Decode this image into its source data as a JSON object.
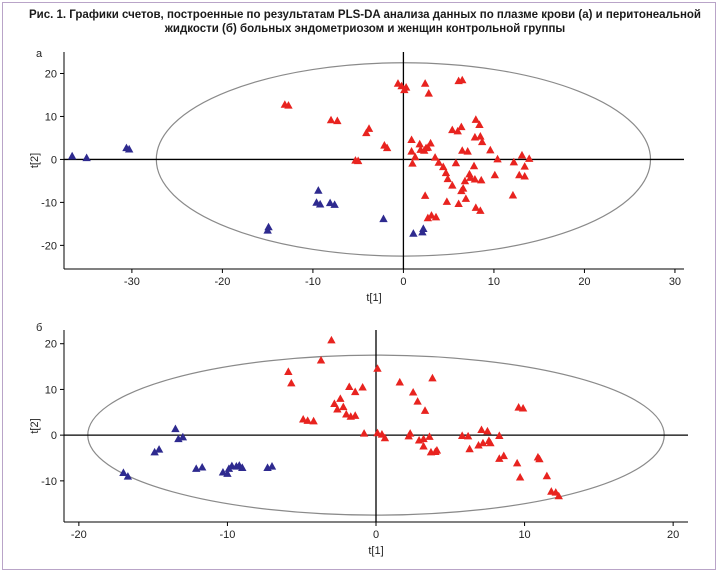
{
  "caption": "Рис. 1. Графики счетов, построенные по результатам PLS-DA анализа данных по плазме крови (а) и перитонеальной жидкости (б) больных эндометриозом и женщин контрольной группы",
  "colors": {
    "group_red": "#e8231f",
    "group_blue": "#2e2a8f",
    "ellipse": "#8a8a8a",
    "axis": "#000000",
    "frame": "#b9a4c8"
  },
  "chart_data": [
    {
      "type": "scatter",
      "panel_label": "а",
      "xlabel": "t[1]",
      "ylabel": "t[2]",
      "xlim": [
        -37.5,
        31
      ],
      "ylim": [
        -25.5,
        25
      ],
      "xticks": [
        -30,
        -20,
        -10,
        0,
        10,
        20,
        30
      ],
      "yticks": [
        -20,
        -10,
        0,
        10,
        20
      ],
      "ellipse": {
        "cx": 0,
        "cy": 0,
        "rx": 27.3,
        "ry": 22.5
      },
      "series": [
        {
          "name": "blue",
          "color": "#2e2a8f",
          "points": [
            [
              -36.6,
              0.8
            ],
            [
              -35.0,
              0.4
            ],
            [
              -30.6,
              2.7
            ],
            [
              -30.3,
              2.4
            ],
            [
              -14.9,
              -15.7
            ],
            [
              -15.0,
              -16.5
            ],
            [
              -9.4,
              -7.2
            ],
            [
              -9.6,
              -10.0
            ],
            [
              -9.2,
              -10.4
            ],
            [
              -8.1,
              -10.1
            ],
            [
              -7.6,
              -10.5
            ],
            [
              -2.2,
              -13.8
            ],
            [
              1.1,
              -17.2
            ],
            [
              2.2,
              -16.1
            ],
            [
              2.1,
              -16.9
            ]
          ]
        },
        {
          "name": "red",
          "color": "#e8231f",
          "points": [
            [
              -13.1,
              12.8
            ],
            [
              -12.7,
              12.6
            ],
            [
              -8.0,
              9.2
            ],
            [
              -7.3,
              9.0
            ],
            [
              -5.3,
              -0.2
            ],
            [
              -5.0,
              -0.3
            ],
            [
              -4.1,
              6.2
            ],
            [
              -3.8,
              7.2
            ],
            [
              -2.1,
              3.3
            ],
            [
              -1.8,
              2.7
            ],
            [
              -0.6,
              17.7
            ],
            [
              -0.2,
              17.1
            ],
            [
              0.1,
              16.2
            ],
            [
              0.3,
              16.8
            ],
            [
              1.8,
              3.6
            ],
            [
              0.9,
              4.6
            ],
            [
              0.9,
              1.9
            ],
            [
              1.3,
              0.6
            ],
            [
              1.9,
              2.3
            ],
            [
              2.3,
              2.1
            ],
            [
              2.5,
              2.7
            ],
            [
              2.7,
              2.8
            ],
            [
              3.0,
              3.8
            ],
            [
              3.5,
              0.5
            ],
            [
              2.8,
              15.4
            ],
            [
              2.4,
              17.7
            ],
            [
              1.0,
              -0.9
            ],
            [
              2.4,
              -8.4
            ],
            [
              2.7,
              -13.6
            ],
            [
              3.1,
              -13.0
            ],
            [
              3.6,
              -13.4
            ],
            [
              3.9,
              -0.7
            ],
            [
              4.4,
              -1.7
            ],
            [
              4.7,
              -3.1
            ],
            [
              4.9,
              -4.5
            ],
            [
              4.8,
              -9.8
            ],
            [
              5.4,
              6.9
            ],
            [
              5.4,
              -6.0
            ],
            [
              6.0,
              6.6
            ],
            [
              6.1,
              18.3
            ],
            [
              6.5,
              18.5
            ],
            [
              6.4,
              7.6
            ],
            [
              6.5,
              2.1
            ],
            [
              6.8,
              -5.0
            ],
            [
              6.9,
              -9.1
            ],
            [
              6.1,
              -10.3
            ],
            [
              6.6,
              -6.7
            ],
            [
              7.1,
              1.9
            ],
            [
              7.3,
              -3.4
            ],
            [
              7.4,
              -4.2
            ],
            [
              7.8,
              -1.5
            ],
            [
              7.9,
              -4.6
            ],
            [
              7.9,
              5.2
            ],
            [
              8.0,
              9.3
            ],
            [
              8.4,
              8.1
            ],
            [
              8.5,
              5.4
            ],
            [
              8.6,
              -4.8
            ],
            [
              8.0,
              -11.2
            ],
            [
              8.5,
              -11.9
            ],
            [
              8.7,
              4.1
            ],
            [
              9.6,
              2.2
            ],
            [
              10.1,
              -3.6
            ],
            [
              10.4,
              0.1
            ],
            [
              12.1,
              -8.3
            ],
            [
              12.2,
              -0.6
            ],
            [
              13.1,
              1.0
            ],
            [
              12.8,
              -3.6
            ],
            [
              13.4,
              -3.9
            ],
            [
              13.4,
              -1.6
            ],
            [
              13.9,
              0.2
            ],
            [
              5.8,
              -0.8
            ],
            [
              6.4,
              -7.3
            ]
          ]
        }
      ]
    },
    {
      "type": "scatter",
      "panel_label": "б",
      "xlabel": "t[1]",
      "ylabel": "t[2]",
      "xlim": [
        -21,
        21
      ],
      "ylim": [
        -19,
        23
      ],
      "xticks": [
        -20,
        -10,
        0,
        10,
        20
      ],
      "yticks": [
        -10,
        0,
        10,
        20
      ],
      "ellipse": {
        "cx": 0,
        "cy": 0,
        "rx": 19.4,
        "ry": 17.5
      },
      "series": [
        {
          "name": "blue",
          "color": "#2e2a8f",
          "points": [
            [
              -17.0,
              -8.2
            ],
            [
              -16.7,
              -9.0
            ],
            [
              -14.9,
              -3.7
            ],
            [
              -14.6,
              -3.1
            ],
            [
              -13.5,
              1.4
            ],
            [
              -13.3,
              -0.8
            ],
            [
              -13.0,
              -0.4
            ],
            [
              -12.1,
              -7.3
            ],
            [
              -11.7,
              -7.0
            ],
            [
              -10.3,
              -8.1
            ],
            [
              -10.0,
              -8.4
            ],
            [
              -9.9,
              -7.3
            ],
            [
              -9.7,
              -6.7
            ],
            [
              -9.4,
              -6.8
            ],
            [
              -9.2,
              -6.6
            ],
            [
              -9.0,
              -7.1
            ],
            [
              -7.3,
              -7.1
            ],
            [
              -7.0,
              -6.8
            ]
          ]
        },
        {
          "name": "red",
          "color": "#e8231f",
          "points": [
            [
              -5.9,
              13.9
            ],
            [
              -5.7,
              11.4
            ],
            [
              -4.9,
              3.5
            ],
            [
              -4.6,
              3.2
            ],
            [
              -4.2,
              3.1
            ],
            [
              -3.7,
              16.4
            ],
            [
              -3.0,
              20.8
            ],
            [
              -2.8,
              6.9
            ],
            [
              -2.6,
              5.7
            ],
            [
              -2.4,
              8.0
            ],
            [
              -2.2,
              6.2
            ],
            [
              -2.0,
              4.6
            ],
            [
              -1.8,
              10.6
            ],
            [
              -1.7,
              4.1
            ],
            [
              -1.4,
              9.5
            ],
            [
              -1.4,
              4.3
            ],
            [
              -0.9,
              10.5
            ],
            [
              -0.8,
              0.4
            ],
            [
              0.1,
              14.6
            ],
            [
              0.4,
              0.2
            ],
            [
              0.6,
              -0.6
            ],
            [
              0.1,
              0.5
            ],
            [
              1.6,
              11.6
            ],
            [
              2.2,
              -0.2
            ],
            [
              2.5,
              9.4
            ],
            [
              2.8,
              7.4
            ],
            [
              2.3,
              0.4
            ],
            [
              2.9,
              -1.1
            ],
            [
              3.2,
              -2.4
            ],
            [
              3.2,
              -0.8
            ],
            [
              3.3,
              5.4
            ],
            [
              3.6,
              -0.3
            ],
            [
              3.7,
              -3.7
            ],
            [
              3.8,
              12.5
            ],
            [
              4.0,
              -3.6
            ],
            [
              4.1,
              -3.3
            ],
            [
              5.8,
              -0.1
            ],
            [
              6.2,
              -0.2
            ],
            [
              6.3,
              -3.0
            ],
            [
              6.9,
              -2.2
            ],
            [
              7.1,
              1.2
            ],
            [
              7.2,
              -1.7
            ],
            [
              7.5,
              0.9
            ],
            [
              7.6,
              -1.2
            ],
            [
              7.7,
              -1.7
            ],
            [
              8.3,
              -0.1
            ],
            [
              8.3,
              -5.1
            ],
            [
              8.6,
              -4.5
            ],
            [
              9.6,
              6.1
            ],
            [
              9.9,
              5.9
            ],
            [
              9.5,
              -6.1
            ],
            [
              9.7,
              -9.2
            ],
            [
              11.0,
              -5.2
            ],
            [
              11.5,
              -8.9
            ],
            [
              11.8,
              -12.3
            ],
            [
              12.1,
              -12.5
            ],
            [
              12.3,
              -13.3
            ],
            [
              10.9,
              -4.8
            ]
          ]
        }
      ]
    }
  ]
}
